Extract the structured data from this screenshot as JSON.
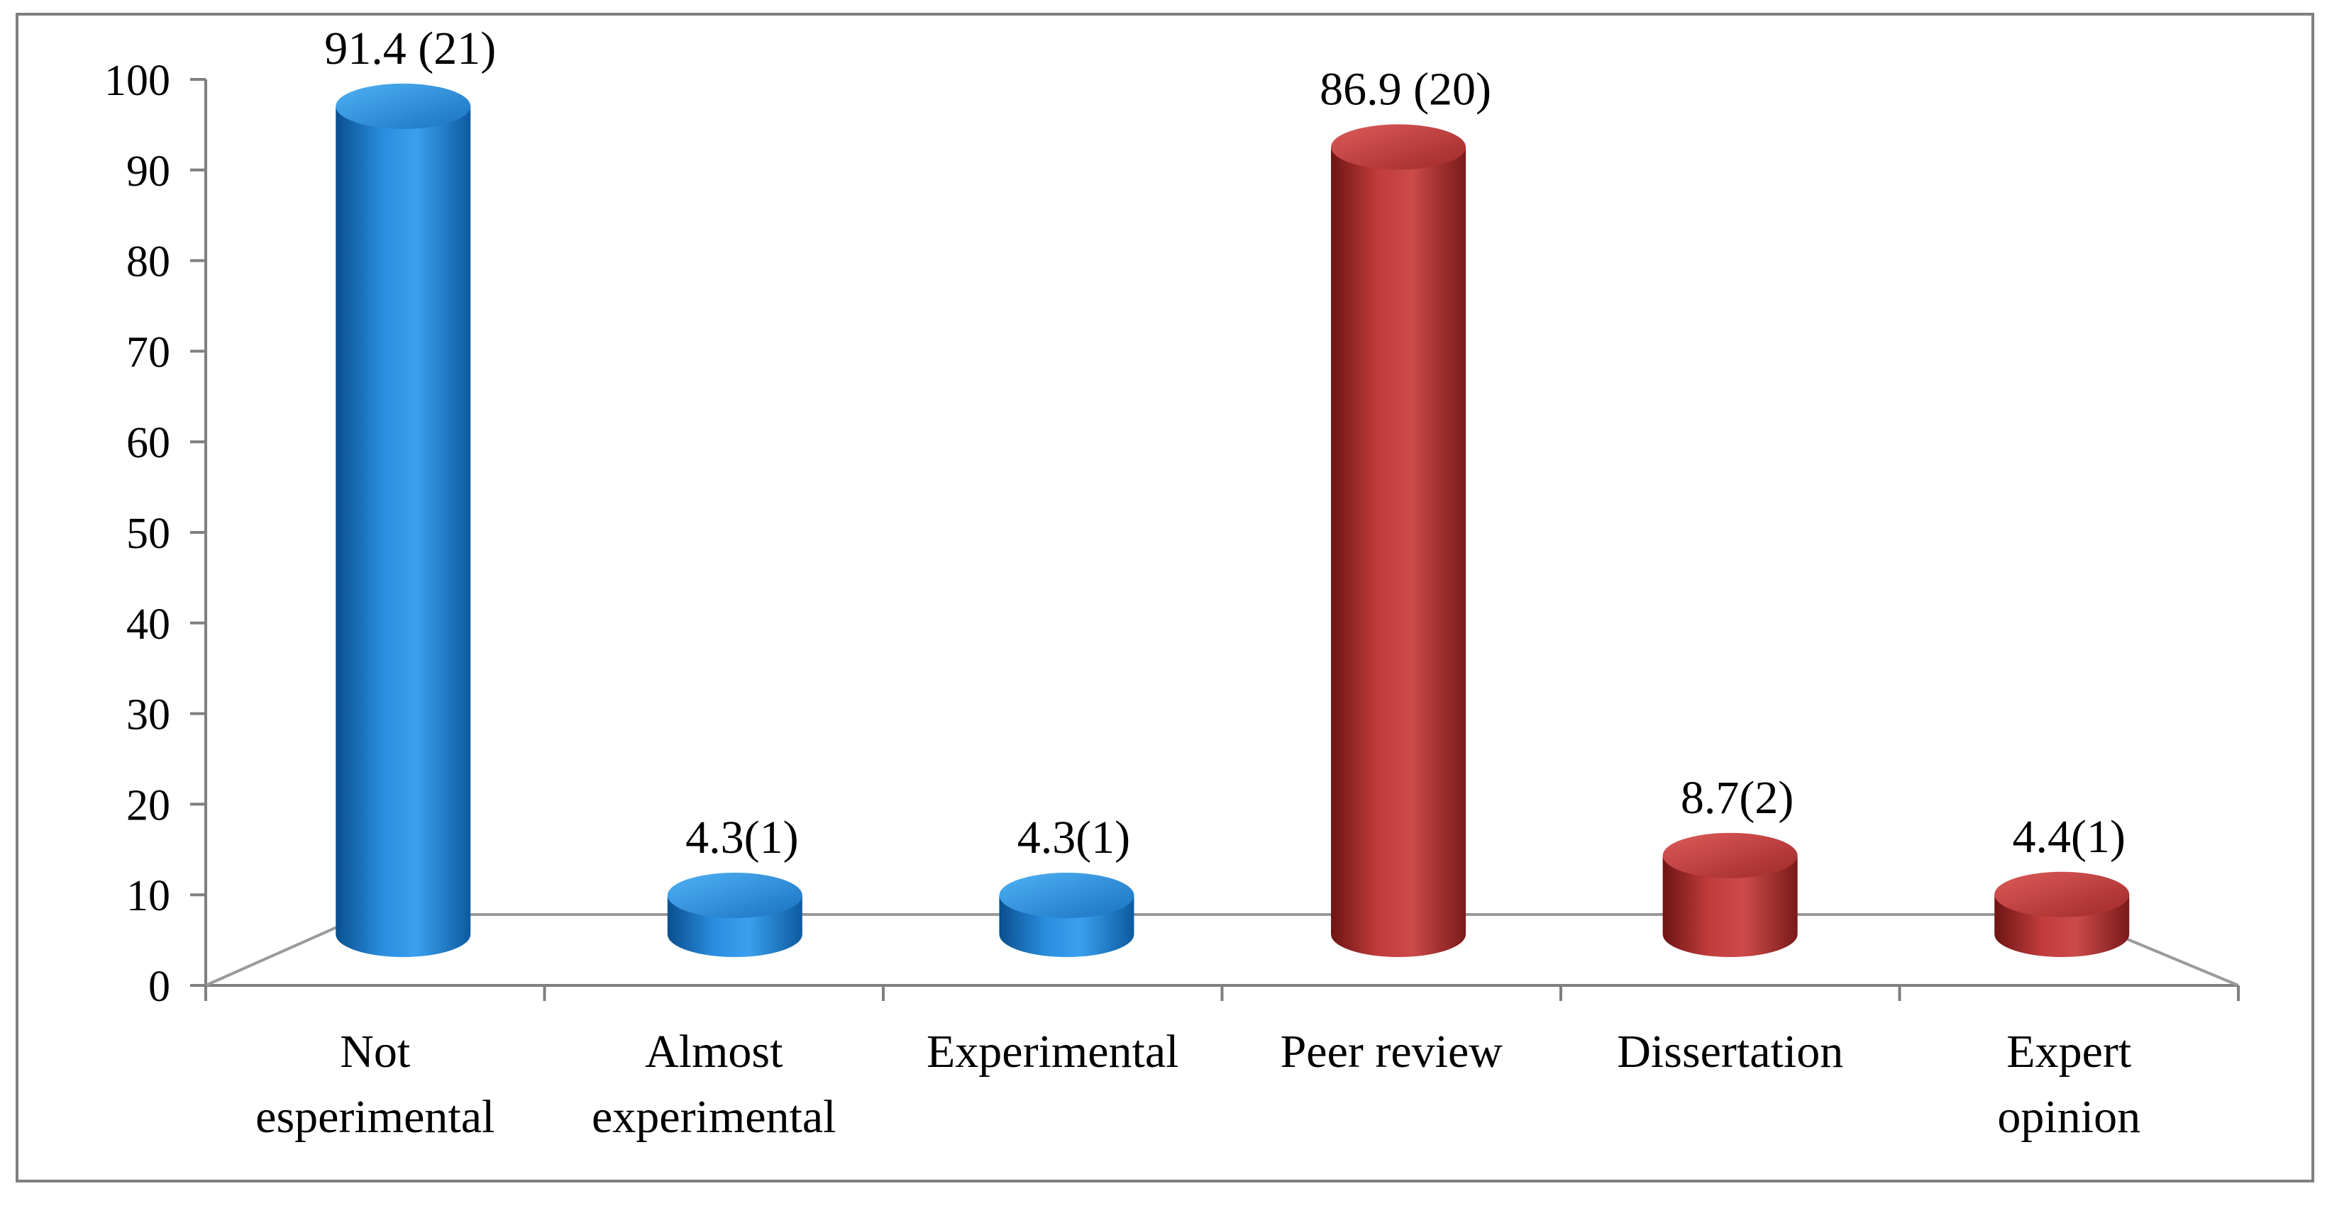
{
  "chart_data": {
    "type": "bar",
    "title": "",
    "xlabel": "",
    "ylabel": "",
    "ylim": [
      0,
      100
    ],
    "yticks": [
      0,
      10,
      20,
      30,
      40,
      50,
      60,
      70,
      80,
      90,
      100
    ],
    "grid": false,
    "legend": "none",
    "categories": [
      [
        "Not",
        "esperimental"
      ],
      [
        "Almost",
        "experimental"
      ],
      [
        "Experimental"
      ],
      [
        "Peer review"
      ],
      [
        "Dissertation"
      ],
      [
        "Expert",
        "opinion"
      ]
    ],
    "values": [
      91.4,
      4.3,
      4.3,
      86.9,
      8.7,
      4.4
    ],
    "data_labels": [
      "91.4 (21)",
      "4.3(1)",
      "4.3(1)",
      "86.9 (20)",
      "8.7(2)",
      "4.4(1)"
    ],
    "bar_colors": [
      "#1f78c8",
      "#1f78c8",
      "#1f78c8",
      "#b43434",
      "#b43434",
      "#b43434"
    ]
  }
}
